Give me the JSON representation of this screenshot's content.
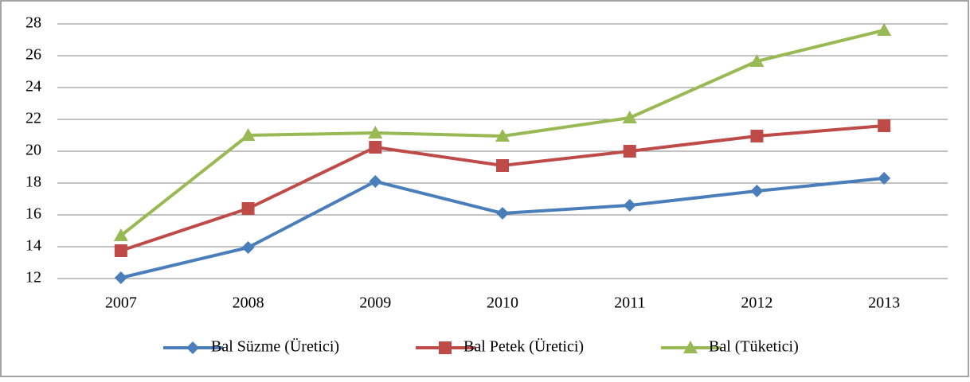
{
  "chart_data": {
    "type": "line",
    "categories": [
      "2007",
      "2008",
      "2009",
      "2010",
      "2011",
      "2012",
      "2013"
    ],
    "series": [
      {
        "name": "Bal Süzme (Üretici)",
        "color": "#4a7ebb",
        "marker": "diamond",
        "values": [
          12.05,
          13.95,
          18.1,
          16.1,
          16.6,
          17.5,
          18.3
        ]
      },
      {
        "name": "Bal Petek (Üretici)",
        "color": "#be4b48",
        "marker": "square",
        "values": [
          13.75,
          16.4,
          20.25,
          19.1,
          20.0,
          20.95,
          21.6
        ]
      },
      {
        "name": "Bal (Tüketici)",
        "color": "#98b954",
        "marker": "triangle",
        "values": [
          14.7,
          21.0,
          21.15,
          20.95,
          22.1,
          25.65,
          27.6
        ]
      }
    ],
    "ylim": [
      12,
      28
    ],
    "yticks": [
      12,
      14,
      16,
      18,
      20,
      22,
      24,
      26,
      28
    ],
    "grid": true,
    "legend": "bottom"
  }
}
